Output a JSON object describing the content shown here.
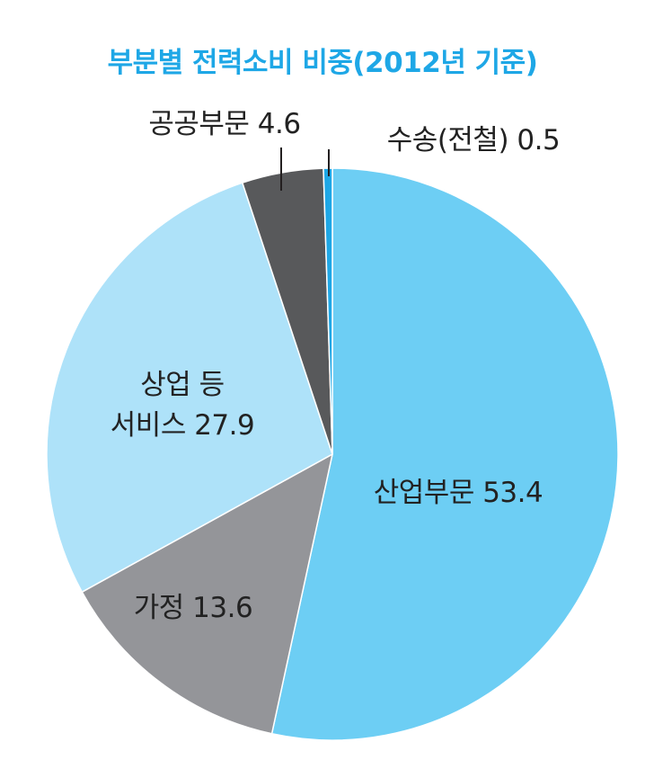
{
  "chart_data": {
    "type": "pie",
    "title": "부분별 전력소비 비중(2012년 기준)",
    "unit": "%",
    "start_angle_deg": 0,
    "direction": "clockwise",
    "slices": [
      {
        "category": "산업부문",
        "value": 53.4,
        "label": "산업부문 53.4",
        "color": "#6dcef4"
      },
      {
        "category": "가정",
        "value": 13.6,
        "label": "가정 13.6",
        "color": "#949599"
      },
      {
        "category": "상업 등 서비스",
        "value": 27.9,
        "label_lines": [
          "상업 등",
          "서비스 27.9"
        ],
        "color": "#aee2f9"
      },
      {
        "category": "공공부문",
        "value": 4.6,
        "label": "공공부문 4.6",
        "color": "#58595b"
      },
      {
        "category": "수송(전철)",
        "value": 0.5,
        "label": "수송(전철) 0.5",
        "color": "#1ea7e6"
      }
    ]
  }
}
